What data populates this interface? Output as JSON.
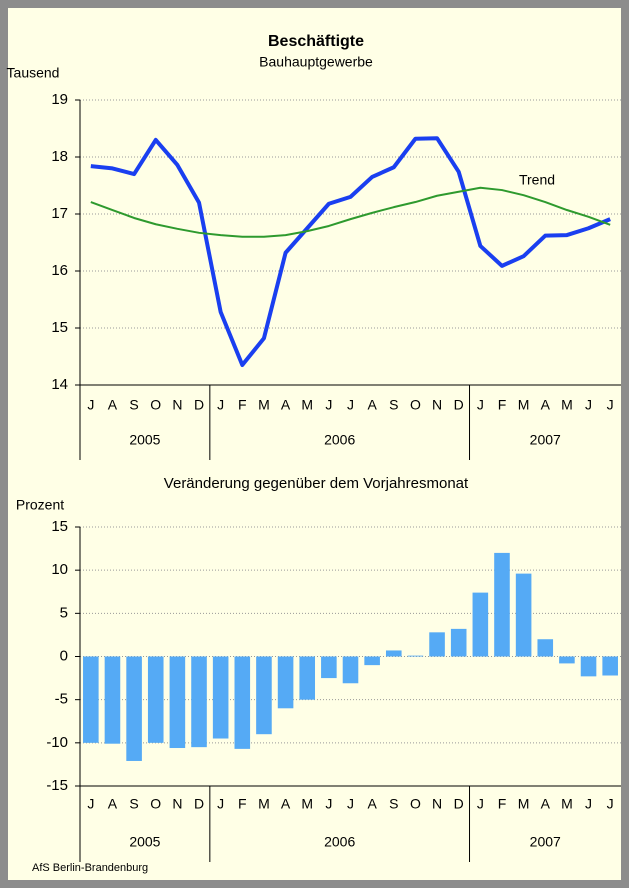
{
  "source": "AfS Berlin-Brandenburg",
  "chart_data": [
    {
      "type": "line",
      "title": "Beschäftigte",
      "subtitle": "Bauhauptgewerbe",
      "y_label": "Tausend",
      "category_groups": [
        {
          "label": "2005",
          "categories": [
            "J",
            "A",
            "S",
            "O",
            "N",
            "D"
          ]
        },
        {
          "label": "2006",
          "categories": [
            "J",
            "F",
            "M",
            "A",
            "M",
            "J",
            "J",
            "A",
            "S",
            "O",
            "N",
            "D"
          ]
        },
        {
          "label": "2007",
          "categories": [
            "J",
            "F",
            "M",
            "A",
            "M",
            "J",
            "J"
          ]
        }
      ],
      "series": [
        {
          "color": "#1a3ff0",
          "values": [
            17.84,
            17.8,
            17.7,
            18.3,
            17.86,
            17.2,
            15.28,
            14.35,
            14.82,
            16.32,
            16.75,
            17.18,
            17.3,
            17.65,
            17.82,
            18.32,
            18.33,
            17.74,
            16.44,
            16.09,
            16.26,
            16.62,
            16.63,
            16.75,
            16.91
          ]
        },
        {
          "name": "Trend",
          "color": "#2e9a2e",
          "values": [
            17.21,
            17.07,
            16.93,
            16.82,
            16.74,
            16.67,
            16.63,
            16.6,
            16.6,
            16.63,
            16.7,
            16.79,
            16.91,
            17.02,
            17.12,
            17.21,
            17.32,
            17.39,
            17.46,
            17.42,
            17.33,
            17.21,
            17.07,
            16.95,
            16.81
          ]
        }
      ],
      "ylim": [
        14,
        19
      ],
      "yticks": [
        14,
        15,
        16,
        17,
        18,
        19
      ],
      "grid": true
    },
    {
      "type": "bar",
      "title": "Veränderung gegenüber dem Vorjahresmonat",
      "y_label": "Prozent",
      "category_groups": [
        {
          "label": "2005",
          "categories": [
            "J",
            "A",
            "S",
            "O",
            "N",
            "D"
          ]
        },
        {
          "label": "2006",
          "categories": [
            "J",
            "F",
            "M",
            "A",
            "M",
            "J",
            "J",
            "A",
            "S",
            "O",
            "N",
            "D"
          ]
        },
        {
          "label": "2007",
          "categories": [
            "J",
            "F",
            "M",
            "A",
            "M",
            "J",
            "J"
          ]
        }
      ],
      "color": "#55aaf5",
      "values": [
        -10,
        -10.1,
        -12.1,
        -10,
        -10.6,
        -10.5,
        -9.5,
        -10.7,
        -9,
        -6,
        -5,
        -2.5,
        -3.1,
        -1,
        0.7,
        0.1,
        2.8,
        3.2,
        7.4,
        12,
        9.6,
        2,
        -0.8,
        -2.3,
        -2.2
      ],
      "ylim": [
        -15,
        15
      ],
      "yticks": [
        -15,
        -10,
        -5,
        0,
        5,
        10,
        15
      ],
      "grid": true
    }
  ]
}
